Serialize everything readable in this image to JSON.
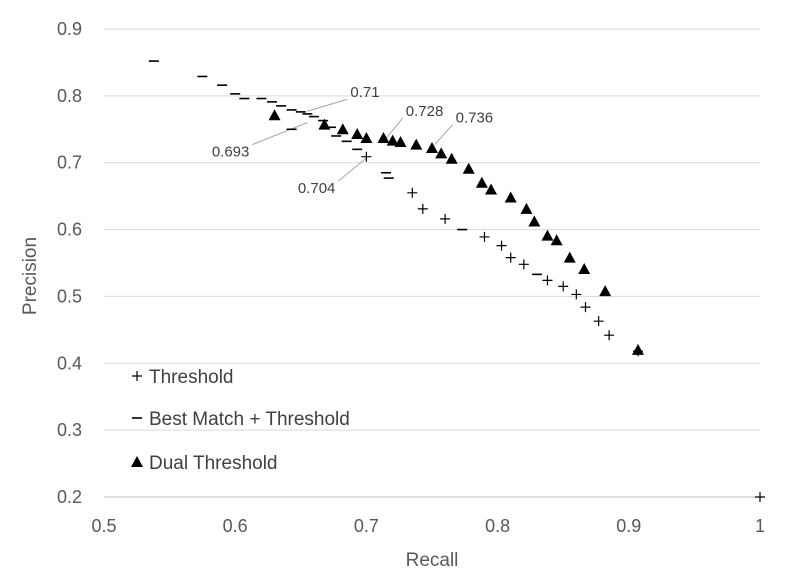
{
  "chart_data": {
    "type": "scatter",
    "title": "",
    "xlabel": "Recall",
    "ylabel": "Precision",
    "xlim": [
      0.5,
      1.0
    ],
    "ylim": [
      0.2,
      0.9
    ],
    "xticks": [
      "0.5",
      "0.6",
      "0.7",
      "0.8",
      "0.9",
      "1"
    ],
    "yticks": [
      "0.2",
      "0.3",
      "0.4",
      "0.5",
      "0.6",
      "0.7",
      "0.8",
      "0.9"
    ],
    "grid": "horizontal",
    "legend_position": "bottom-left",
    "series": [
      {
        "name": "Threshold",
        "marker": "plus",
        "points": [
          [
            0.7,
            0.709
          ],
          [
            0.735,
            0.655
          ],
          [
            0.743,
            0.631
          ],
          [
            0.76,
            0.616
          ],
          [
            0.79,
            0.589
          ],
          [
            0.803,
            0.576
          ],
          [
            0.81,
            0.558
          ],
          [
            0.82,
            0.548
          ],
          [
            0.838,
            0.524
          ],
          [
            0.85,
            0.515
          ],
          [
            0.86,
            0.503
          ],
          [
            0.867,
            0.484
          ],
          [
            0.877,
            0.463
          ],
          [
            0.885,
            0.442
          ],
          [
            0.907,
            0.418
          ],
          [
            1.0,
            0.2
          ]
        ]
      },
      {
        "name": "Best Match + Threshold",
        "marker": "dash",
        "points": [
          [
            0.538,
            0.852
          ],
          [
            0.575,
            0.829
          ],
          [
            0.59,
            0.816
          ],
          [
            0.6,
            0.803
          ],
          [
            0.607,
            0.796
          ],
          [
            0.62,
            0.796
          ],
          [
            0.628,
            0.791
          ],
          [
            0.635,
            0.785
          ],
          [
            0.643,
            0.779
          ],
          [
            0.65,
            0.776
          ],
          [
            0.655,
            0.773
          ],
          [
            0.66,
            0.769
          ],
          [
            0.667,
            0.763
          ],
          [
            0.673,
            0.753
          ],
          [
            0.677,
            0.74
          ],
          [
            0.685,
            0.732
          ],
          [
            0.693,
            0.72
          ],
          [
            0.643,
            0.75
          ],
          [
            0.715,
            0.685
          ],
          [
            0.717,
            0.677
          ],
          [
            0.773,
            0.6
          ],
          [
            0.83,
            0.533
          ]
        ]
      },
      {
        "name": "Dual Threshold",
        "marker": "triangle",
        "points": [
          [
            0.63,
            0.771
          ],
          [
            0.668,
            0.757
          ],
          [
            0.682,
            0.75
          ],
          [
            0.693,
            0.743
          ],
          [
            0.7,
            0.737
          ],
          [
            0.713,
            0.737
          ],
          [
            0.72,
            0.733
          ],
          [
            0.726,
            0.731
          ],
          [
            0.738,
            0.727
          ],
          [
            0.75,
            0.722
          ],
          [
            0.757,
            0.714
          ],
          [
            0.765,
            0.706
          ],
          [
            0.778,
            0.691
          ],
          [
            0.788,
            0.67
          ],
          [
            0.795,
            0.66
          ],
          [
            0.81,
            0.648
          ],
          [
            0.822,
            0.631
          ],
          [
            0.828,
            0.612
          ],
          [
            0.838,
            0.591
          ],
          [
            0.845,
            0.584
          ],
          [
            0.855,
            0.558
          ],
          [
            0.866,
            0.541
          ],
          [
            0.882,
            0.508
          ],
          [
            0.907,
            0.42
          ]
        ]
      }
    ],
    "annotations": [
      {
        "text": "0.71",
        "x": 0.655,
        "y": 0.777,
        "dx": 40,
        "dy": -12
      },
      {
        "text": "0.693",
        "x": 0.655,
        "y": 0.76,
        "dx": -55,
        "dy": 22
      },
      {
        "text": "0.728",
        "x": 0.714,
        "y": 0.734,
        "dx": 18,
        "dy": -22
      },
      {
        "text": "0.704",
        "x": 0.7,
        "y": 0.707,
        "dx": -28,
        "dy": 23
      },
      {
        "text": "0.736",
        "x": 0.752,
        "y": 0.727,
        "dx": 18,
        "dy": -20
      }
    ]
  }
}
